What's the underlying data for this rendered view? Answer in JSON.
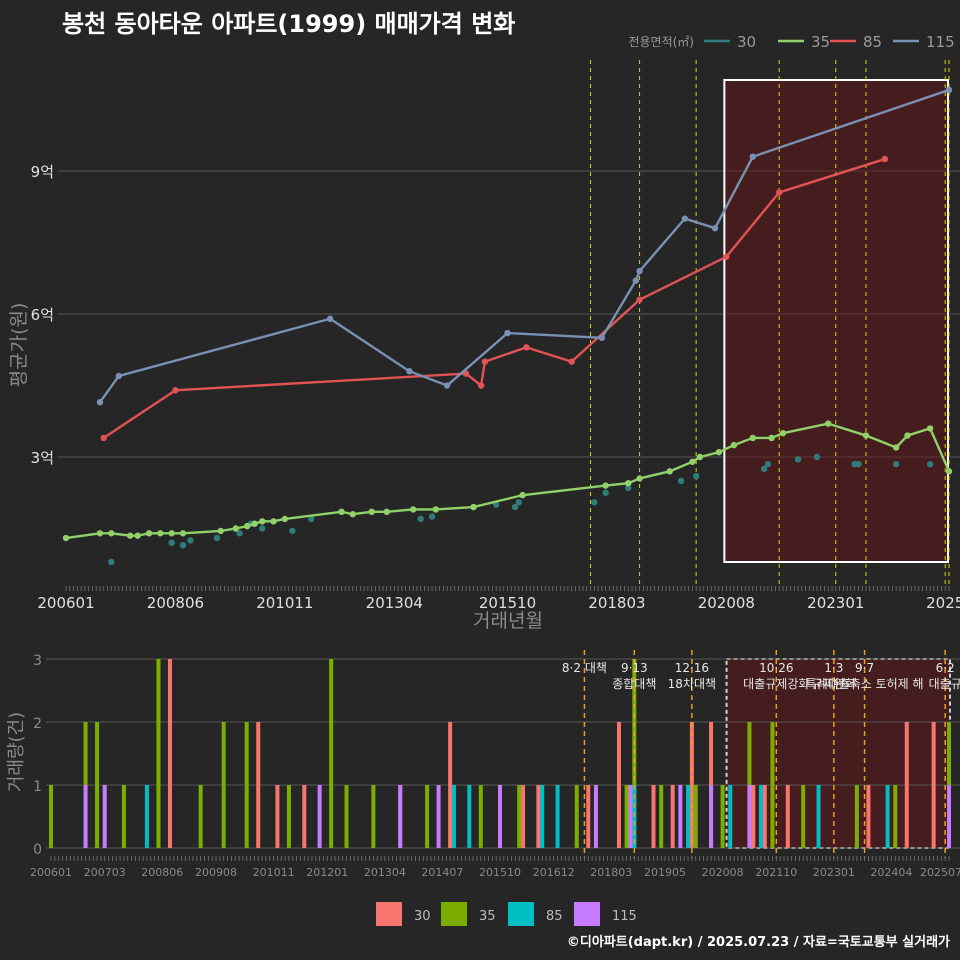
{
  "title": "봉천 동아타운 아파트(1999) 매매가격 변화",
  "footer": "©디아파트(dapt.kr) / 2025.07.23 / 자료=국토교통부 실거래가",
  "chart_data": [
    {
      "type": "line",
      "legend_title": "전용면적(㎡)",
      "legend_position": "top-right",
      "xlabel": "거래년월",
      "ylabel": "평균가(원)",
      "x_ticks": [
        "200601",
        "200806",
        "201011",
        "201304",
        "201510",
        "201803",
        "202008",
        "202301",
        "2025"
      ],
      "y_ticks": [
        {
          "value": 3,
          "label": "3억"
        },
        {
          "value": 6,
          "label": "6억"
        },
        {
          "value": 9,
          "label": "9억"
        }
      ],
      "xlim": [
        "2006-01",
        "2025-07"
      ],
      "ylim": [
        0.7,
        11.2
      ],
      "highlight_range": [
        "2020-08",
        "2025-07"
      ],
      "policy_lines": [
        "2017-08",
        "2018-09",
        "2019-12",
        "2021-10",
        "2023-01",
        "2023-09",
        "2025-06",
        "2025-07"
      ],
      "series": [
        {
          "name": "30",
          "color": "#2E7D7A",
          "points": [
            [
              "2007-01",
              0.8
            ],
            [
              "2008-05",
              1.2
            ],
            [
              "2008-08",
              1.15
            ],
            [
              "2008-10",
              1.25
            ],
            [
              "2009-05",
              1.3
            ],
            [
              "2009-11",
              1.4
            ],
            [
              "2010-02",
              1.6
            ],
            [
              "2010-05",
              1.5
            ],
            [
              "2011-01",
              1.45
            ],
            [
              "2011-06",
              1.7
            ],
            [
              "2013-11",
              1.7
            ],
            [
              "2014-02",
              1.75
            ],
            [
              "2015-07",
              2.0
            ],
            [
              "2015-12",
              1.95
            ],
            [
              "2016-01",
              2.05
            ],
            [
              "2017-09",
              2.05
            ],
            [
              "2017-12",
              2.25
            ],
            [
              "2018-06",
              2.35
            ],
            [
              "2019-08",
              2.5
            ],
            [
              "2019-12",
              2.6
            ],
            [
              "2021-06",
              2.75
            ],
            [
              "2021-07",
              2.85
            ],
            [
              "2022-03",
              2.95
            ],
            [
              "2022-08",
              3.0
            ],
            [
              "2023-06",
              2.85
            ],
            [
              "2023-07",
              2.85
            ],
            [
              "2024-05",
              2.85
            ],
            [
              "2025-02",
              2.85
            ]
          ]
        },
        {
          "name": "35",
          "color": "#90D16A",
          "points": [
            [
              "2006-01",
              1.3
            ],
            [
              "2006-10",
              1.4
            ],
            [
              "2007-01",
              1.4
            ],
            [
              "2007-06",
              1.35
            ],
            [
              "2007-08",
              1.35
            ],
            [
              "2007-11",
              1.4
            ],
            [
              "2008-02",
              1.4
            ],
            [
              "2008-05",
              1.4
            ],
            [
              "2008-08",
              1.4
            ],
            [
              "2009-06",
              1.45
            ],
            [
              "2009-10",
              1.5
            ],
            [
              "2010-01",
              1.55
            ],
            [
              "2010-03",
              1.6
            ],
            [
              "2010-05",
              1.65
            ],
            [
              "2010-08",
              1.65
            ],
            [
              "2010-11",
              1.7
            ],
            [
              "2012-02",
              1.85
            ],
            [
              "2012-05",
              1.8
            ],
            [
              "2012-10",
              1.85
            ],
            [
              "2013-02",
              1.85
            ],
            [
              "2013-09",
              1.9
            ],
            [
              "2014-03",
              1.9
            ],
            [
              "2015-01",
              1.95
            ],
            [
              "2016-02",
              2.2
            ],
            [
              "2017-12",
              2.4
            ],
            [
              "2018-06",
              2.45
            ],
            [
              "2018-09",
              2.55
            ],
            [
              "2019-05",
              2.7
            ],
            [
              "2019-11",
              2.9
            ],
            [
              "2020-01",
              3.0
            ],
            [
              "2020-06",
              3.1
            ],
            [
              "2020-10",
              3.25
            ],
            [
              "2021-03",
              3.4
            ],
            [
              "2021-08",
              3.4
            ],
            [
              "2021-11",
              3.5
            ],
            [
              "2022-11",
              3.7
            ],
            [
              "2023-09",
              3.45
            ],
            [
              "2024-05",
              3.2
            ],
            [
              "2024-08",
              3.45
            ],
            [
              "2025-02",
              3.6
            ],
            [
              "2025-07",
              2.7
            ]
          ]
        },
        {
          "name": "85",
          "color": "#E45353",
          "points": [
            [
              "2006-11",
              3.4
            ],
            [
              "2008-06",
              4.4
            ],
            [
              "2014-11",
              4.75
            ],
            [
              "2015-03",
              4.5
            ],
            [
              "2015-04",
              5.0
            ],
            [
              "2016-03",
              5.3
            ],
            [
              "2017-03",
              5.0
            ],
            [
              "2018-09",
              6.3
            ],
            [
              "2020-08",
              7.2
            ],
            [
              "2021-10",
              8.55
            ],
            [
              "2024-02",
              9.25
            ]
          ]
        },
        {
          "name": "115",
          "color": "#7891B5",
          "points": [
            [
              "2006-10",
              4.15
            ],
            [
              "2007-03",
              4.7
            ],
            [
              "2011-11",
              5.9
            ],
            [
              "2013-08",
              4.8
            ],
            [
              "2014-06",
              4.5
            ],
            [
              "2015-10",
              5.6
            ],
            [
              "2017-11",
              5.5
            ],
            [
              "2018-08",
              6.7
            ],
            [
              "2018-09",
              6.9
            ],
            [
              "2019-09",
              8.0
            ],
            [
              "2020-05",
              7.8
            ],
            [
              "2021-03",
              9.3
            ],
            [
              "2025-07",
              10.7
            ]
          ]
        }
      ]
    },
    {
      "type": "bar",
      "xlabel": "",
      "ylabel": "거래량(건)",
      "x_ticks": [
        "200601",
        "200703",
        "200806",
        "200908",
        "201011",
        "201201",
        "201304",
        "201407",
        "201510",
        "201612",
        "201803",
        "201905",
        "202008",
        "202110",
        "202301",
        "202404",
        "202507"
      ],
      "y_ticks": [
        "0",
        "1",
        "2",
        "3"
      ],
      "ylim": [
        0,
        3
      ],
      "legend_position": "bottom",
      "highlight_range": [
        "2020-08",
        "2025-07"
      ],
      "annotations": [
        {
          "date": "2017-08",
          "lines": [
            "8·2 대책"
          ]
        },
        {
          "date": "2018-09",
          "lines": [
            "9·13",
            "종합대책"
          ]
        },
        {
          "date": "2019-12",
          "lines": [
            "12·16",
            "18차대책"
          ]
        },
        {
          "date": "2021-10",
          "lines": [
            "10·26",
            "대출규제강화"
          ]
        },
        {
          "date": "2023-01",
          "lines": [
            "1·3",
            "규제완화"
          ]
        },
        {
          "date": "2023-09",
          "lines": [
            "9·7",
            "특례대출축소 토허제 해"
          ]
        },
        {
          "date": "2025-06",
          "lines": [
            "6·2",
            "대출규"
          ]
        }
      ],
      "series": [
        {
          "name": "30",
          "color": "#F8766D",
          "bars": [
            [
              "2008-08",
              3
            ],
            [
              "2010-07",
              2
            ],
            [
              "2010-12",
              1
            ],
            [
              "2011-07",
              1
            ],
            [
              "2013-08",
              1
            ],
            [
              "2014-09",
              2
            ],
            [
              "2016-04",
              1
            ],
            [
              "2016-08",
              1
            ],
            [
              "2017-09",
              1
            ],
            [
              "2018-05",
              2
            ],
            [
              "2018-09",
              1
            ],
            [
              "2019-02",
              1
            ],
            [
              "2019-07",
              1
            ],
            [
              "2019-12",
              2
            ],
            [
              "2020-05",
              2
            ],
            [
              "2021-04",
              1
            ],
            [
              "2021-07",
              1
            ],
            [
              "2022-01",
              1
            ],
            [
              "2023-10",
              1
            ],
            [
              "2024-08",
              2
            ],
            [
              "2025-03",
              2
            ]
          ]
        },
        {
          "name": "35",
          "color": "#7CAE00",
          "bars": [
            [
              "2006-01",
              1
            ],
            [
              "2006-10",
              2
            ],
            [
              "2007-01",
              2
            ],
            [
              "2007-08",
              1
            ],
            [
              "2008-05",
              3
            ],
            [
              "2009-04",
              1
            ],
            [
              "2009-10",
              2
            ],
            [
              "2010-04",
              2
            ],
            [
              "2011-03",
              1
            ],
            [
              "2012-02",
              3
            ],
            [
              "2012-06",
              1
            ],
            [
              "2013-01",
              1
            ],
            [
              "2014-03",
              1
            ],
            [
              "2015-05",
              1
            ],
            [
              "2016-03",
              1
            ],
            [
              "2017-06",
              1
            ],
            [
              "2018-07",
              1
            ],
            [
              "2018-09",
              3
            ],
            [
              "2019-04",
              1
            ],
            [
              "2020-01",
              1
            ],
            [
              "2020-08",
              1
            ],
            [
              "2021-03",
              2
            ],
            [
              "2021-09",
              2
            ],
            [
              "2022-05",
              1
            ],
            [
              "2023-07",
              1
            ],
            [
              "2024-05",
              1
            ],
            [
              "2025-07",
              2
            ]
          ]
        },
        {
          "name": "85",
          "color": "#00BFC4",
          "bars": [
            [
              "2008-02",
              1
            ],
            [
              "2014-10",
              1
            ],
            [
              "2015-02",
              1
            ],
            [
              "2016-09",
              1
            ],
            [
              "2017-01",
              1
            ],
            [
              "2018-09",
              1
            ],
            [
              "2019-11",
              1
            ],
            [
              "2020-10",
              1
            ],
            [
              "2021-06",
              1
            ],
            [
              "2022-09",
              1
            ],
            [
              "2024-03",
              1
            ]
          ]
        },
        {
          "name": "115",
          "color": "#C77CFF",
          "bars": [
            [
              "2006-10",
              1
            ],
            [
              "2007-03",
              1
            ],
            [
              "2011-11",
              1
            ],
            [
              "2013-08",
              1
            ],
            [
              "2014-06",
              1
            ],
            [
              "2015-10",
              1
            ],
            [
              "2017-11",
              1
            ],
            [
              "2018-08",
              1
            ],
            [
              "2019-09",
              1
            ],
            [
              "2020-05",
              1
            ],
            [
              "2021-03",
              1
            ],
            [
              "2025-07",
              1
            ]
          ]
        }
      ]
    }
  ]
}
